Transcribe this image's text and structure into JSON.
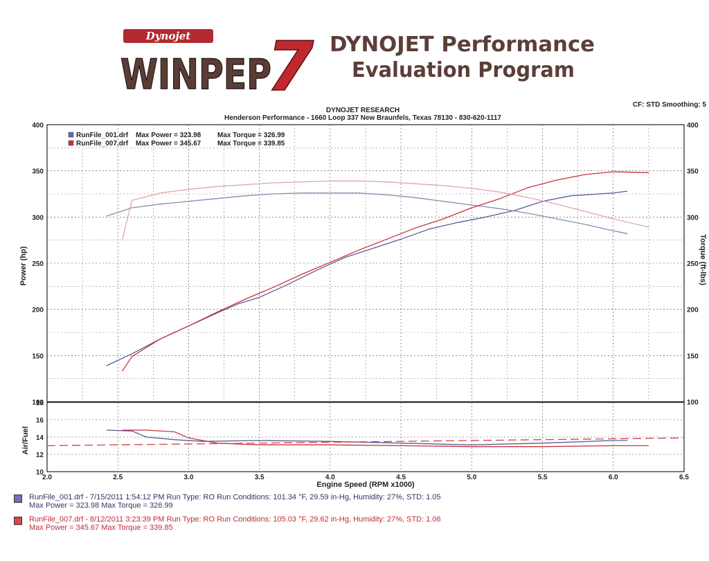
{
  "logo": {
    "badge": "Dynojet",
    "wordmark": "WINPEP",
    "version": "7",
    "title_line1": "DYNOJET Performance",
    "title_line2": "Evaluation Program"
  },
  "header": {
    "company": "DYNOJET RESEARCH",
    "shop_line": "Henderson Performance - 1660 Loop 337 New Braunfels, Texas 78130 - 830-620-1117",
    "settings": "CF: STD  Smoothing: 5"
  },
  "legend": [
    {
      "file": "RunFile_001.drf",
      "power_text": "Max Power = 323.98",
      "torque_text": "Max Torque = 326.99",
      "color": "#6a6aa8"
    },
    {
      "file": "RunFile_007.drf",
      "power_text": "Max Power = 345.67",
      "torque_text": "Max Torque = 339.85",
      "color": "#c8323c"
    }
  ],
  "footer": [
    {
      "line1": "RunFile_001.drf - 7/15/2011 1:54:12 PM  Run Type: RO  Run Conditions: 101.34 °F, 29.59 in-Hg,  Humidity: 27%, STD: 1.05",
      "line2": "Max Power = 323.98  Max Torque = 326.99",
      "color": "#333366",
      "swatch": "#7070b8"
    },
    {
      "line1": "RunFile_007.drf - 8/12/2011 3:23:39 PM  Run Type: RO  Run Conditions: 105.03 °F, 29.62 in-Hg,  Humidity: 27%, STD: 1.06",
      "line2": "Max Power = 345.67  Max Torque = 339.85",
      "color": "#c02a34",
      "swatch": "#d84650"
    }
  ],
  "chart_data": [
    {
      "type": "line",
      "title": "",
      "xlabel": "",
      "ylabel": "Power (hp)",
      "y2label": "Torque (ft-lbs)",
      "xlim": [
        2.0,
        6.5
      ],
      "ylim": [
        100,
        400
      ],
      "y2lim": [
        100,
        400
      ],
      "xticks": [
        2.0,
        2.5,
        3.0,
        3.5,
        4.0,
        4.5,
        5.0,
        5.5,
        6.0,
        6.5
      ],
      "yticks": [
        100,
        150,
        200,
        250,
        300,
        350,
        400
      ],
      "y2ticks": [
        100,
        150,
        200,
        250,
        300,
        350,
        400
      ],
      "grid": true,
      "legend_position": "top-left",
      "series": [
        {
          "name": "RunFile_001.drf",
          "quantity": "power",
          "color": "#5a5a9a",
          "x": [
            2.42,
            2.6,
            2.8,
            3.0,
            3.2,
            3.35,
            3.5,
            3.7,
            3.9,
            4.1,
            4.3,
            4.5,
            4.7,
            4.9,
            5.1,
            5.3,
            5.5,
            5.7,
            5.9,
            6.0,
            6.1
          ],
          "y": [
            139,
            152,
            168,
            182,
            196,
            206,
            213,
            227,
            242,
            256,
            266,
            276,
            287,
            294,
            300,
            307,
            317,
            323,
            325,
            326,
            328
          ]
        },
        {
          "name": "RunFile_001.drf",
          "quantity": "torque",
          "color": "#8a8ab4",
          "x": [
            2.42,
            2.6,
            2.8,
            3.0,
            3.2,
            3.4,
            3.6,
            3.8,
            4.0,
            4.2,
            4.4,
            4.6,
            4.8,
            5.0,
            5.2,
            5.4,
            5.6,
            5.8,
            6.0,
            6.1
          ],
          "y": [
            301,
            310,
            314,
            317,
            320,
            323,
            325,
            326,
            326,
            326,
            324,
            321,
            317,
            313,
            309,
            304,
            298,
            292,
            285,
            282
          ]
        },
        {
          "name": "RunFile_007.drf",
          "quantity": "power",
          "color": "#c8323c",
          "x": [
            2.53,
            2.6,
            2.8,
            3.0,
            3.2,
            3.4,
            3.6,
            3.8,
            4.0,
            4.2,
            4.4,
            4.6,
            4.8,
            5.0,
            5.2,
            5.4,
            5.6,
            5.8,
            6.0,
            6.25
          ],
          "y": [
            133,
            149,
            168,
            182,
            197,
            211,
            224,
            238,
            251,
            264,
            276,
            288,
            298,
            310,
            320,
            332,
            340,
            346,
            349,
            348
          ]
        },
        {
          "name": "RunFile_007.drf",
          "quantity": "torque",
          "color": "#e0a4aa",
          "x": [
            2.53,
            2.6,
            2.8,
            3.0,
            3.2,
            3.4,
            3.6,
            3.8,
            4.0,
            4.2,
            4.4,
            4.6,
            4.8,
            5.0,
            5.2,
            5.4,
            5.6,
            5.8,
            6.0,
            6.25
          ],
          "y": [
            275,
            318,
            326,
            330,
            333,
            335,
            337,
            338,
            339,
            339,
            338,
            336,
            334,
            331,
            327,
            321,
            314,
            306,
            298,
            289
          ]
        }
      ]
    },
    {
      "type": "line",
      "title": "",
      "xlabel": "Engine Speed (RPM x1000)",
      "ylabel": "Air/Fuel",
      "xlim": [
        2.0,
        6.5
      ],
      "ylim": [
        10,
        18
      ],
      "xticks": [
        2.0,
        2.5,
        3.0,
        3.5,
        4.0,
        4.5,
        5.0,
        5.5,
        6.0,
        6.5
      ],
      "yticks": [
        10,
        12,
        14,
        16,
        18
      ],
      "grid": true,
      "series": [
        {
          "name": "RunFile_001.drf",
          "color": "#5a5a9a",
          "x": [
            2.42,
            2.6,
            2.7,
            2.9,
            3.1,
            3.5,
            4.0,
            4.5,
            5.0,
            5.5,
            6.0,
            6.1
          ],
          "y": [
            14.8,
            14.7,
            14.0,
            13.7,
            13.5,
            13.6,
            13.5,
            13.3,
            13.1,
            13.3,
            13.6,
            13.6
          ]
        },
        {
          "name": "RunFile_007.drf",
          "color": "#c8323c",
          "x": [
            2.53,
            2.7,
            2.9,
            3.0,
            3.2,
            3.5,
            4.0,
            4.5,
            5.0,
            5.5,
            6.0,
            6.25
          ],
          "y": [
            14.8,
            14.8,
            14.6,
            13.9,
            13.3,
            13.1,
            13.1,
            13.0,
            12.9,
            12.9,
            13.0,
            13.0
          ]
        },
        {
          "name": "",
          "style": "dashed",
          "color": "#d04048",
          "x": [
            2.0,
            6.5
          ],
          "y": [
            13.0,
            13.9
          ]
        }
      ]
    }
  ]
}
